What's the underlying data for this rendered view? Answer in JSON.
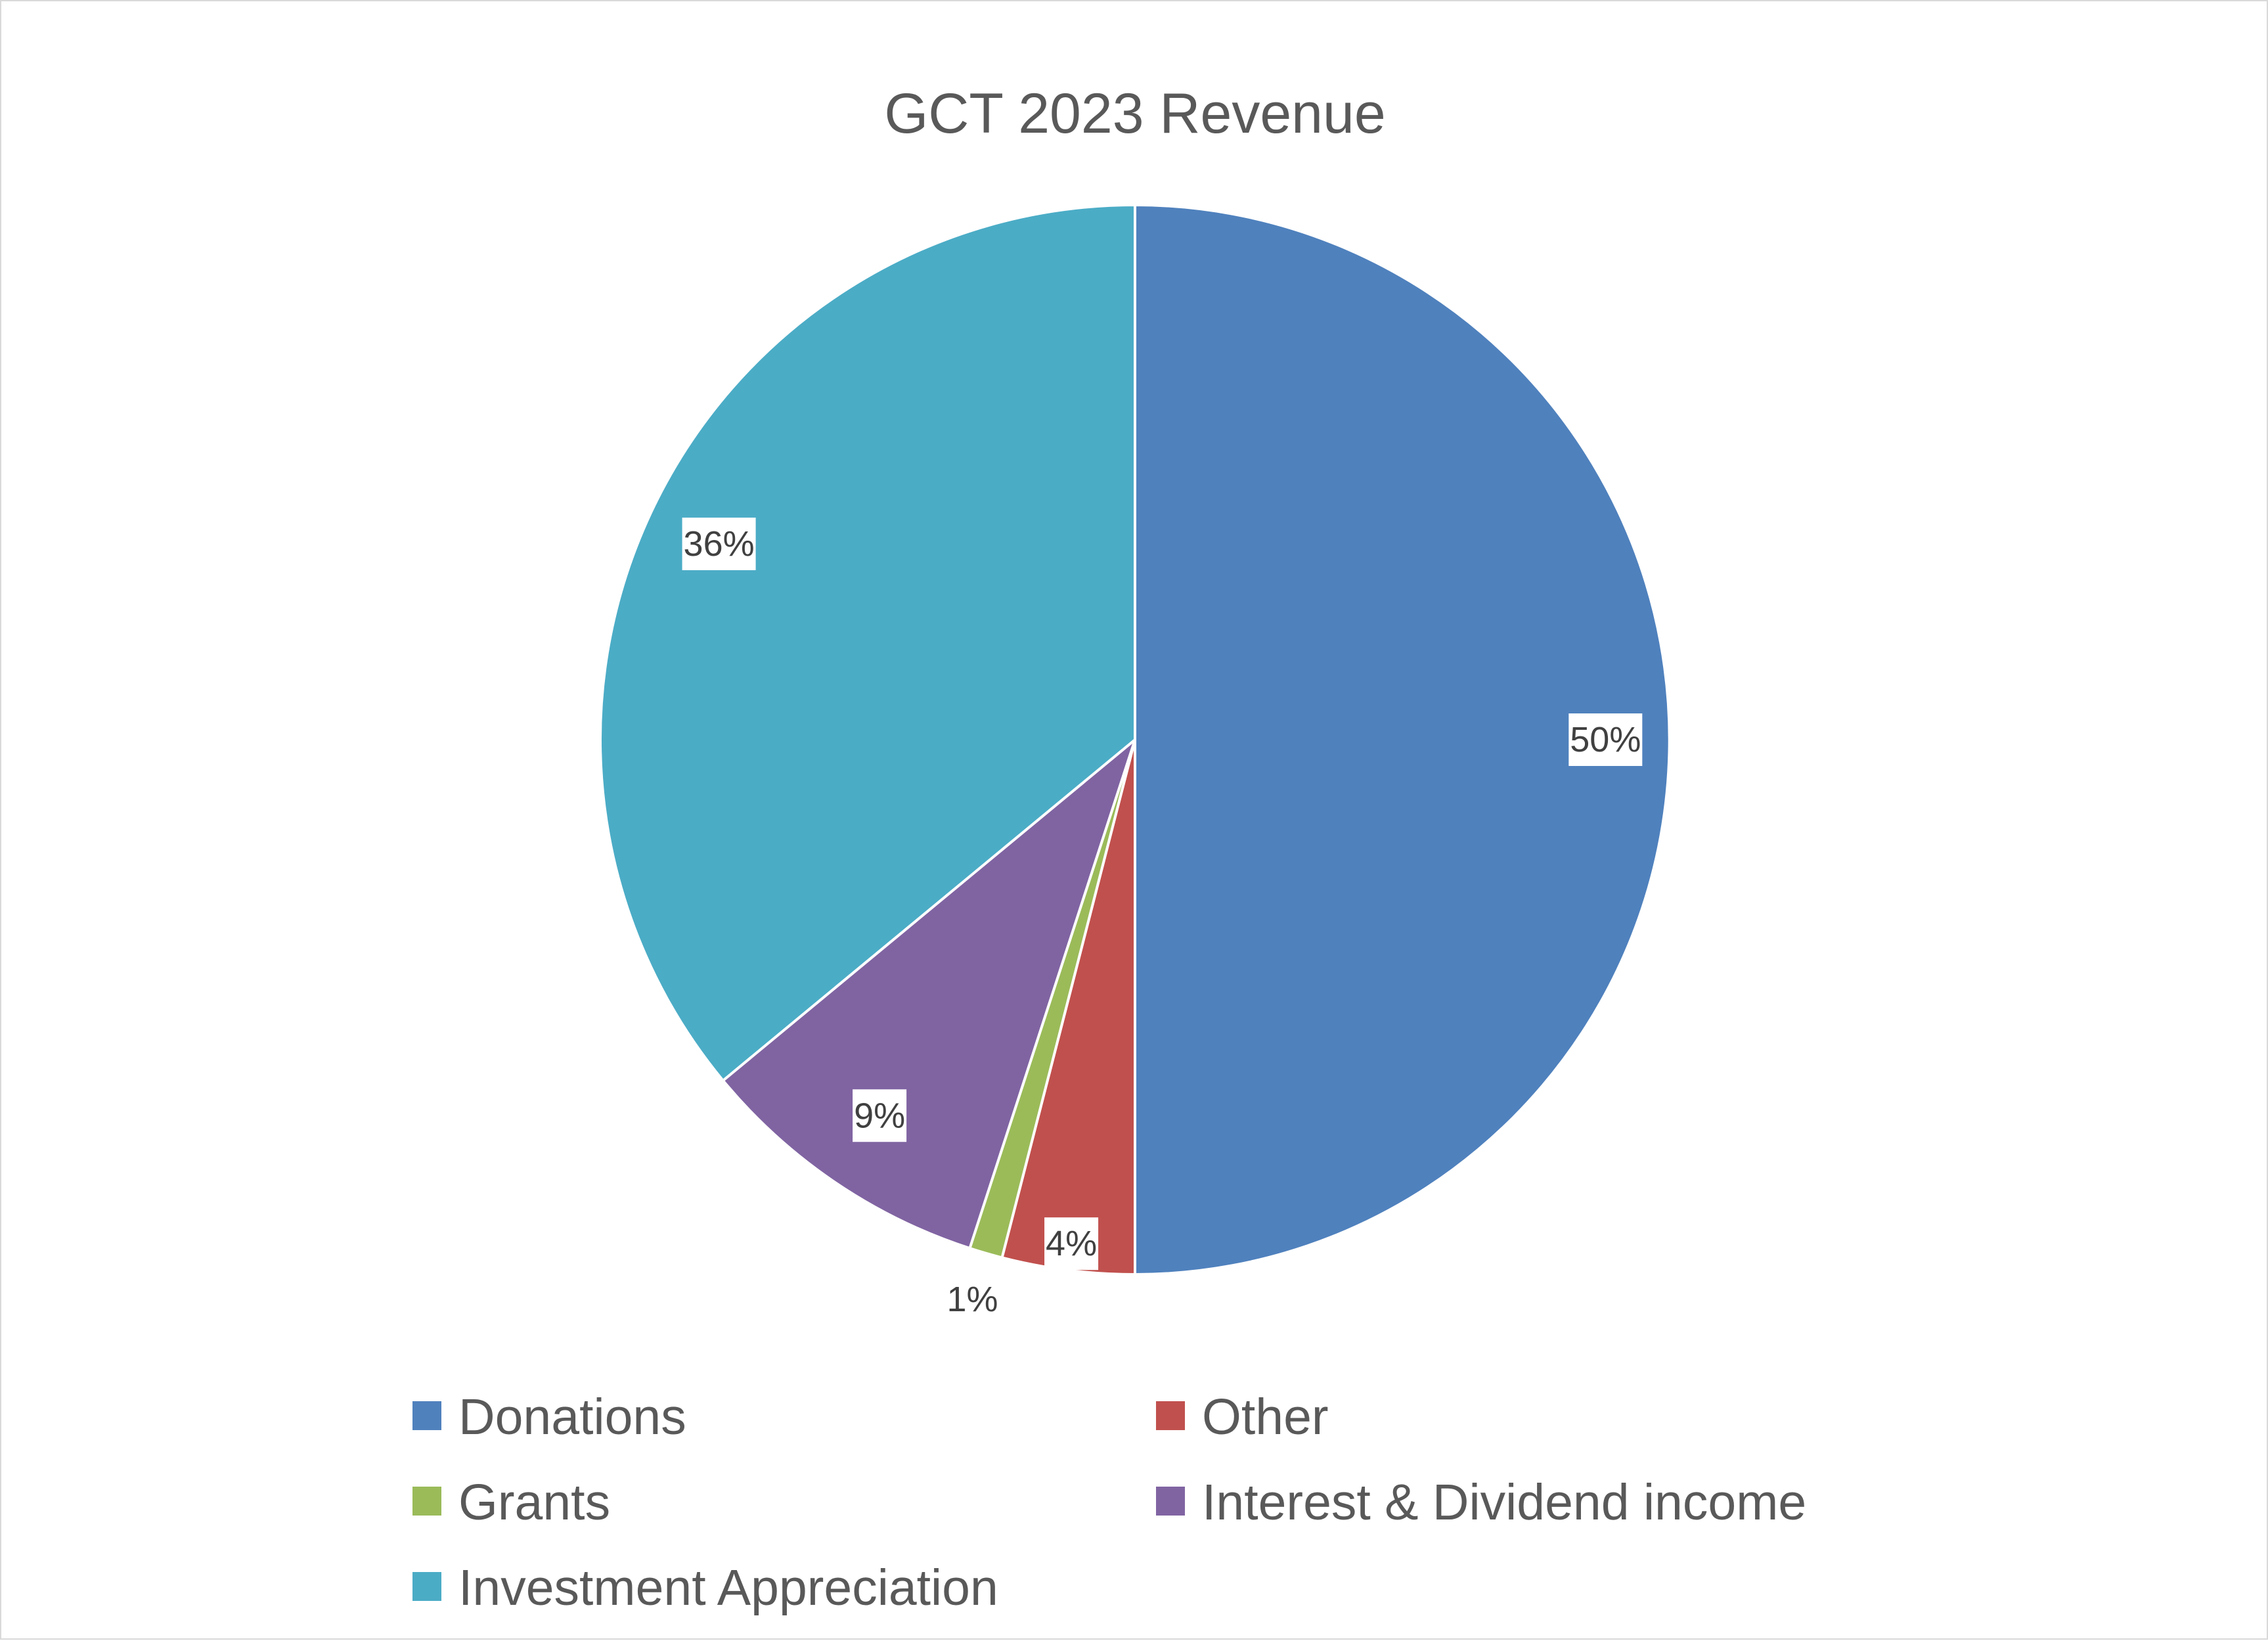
{
  "chart_data": {
    "type": "pie",
    "title": "GCT 2023 Revenue",
    "slices": [
      {
        "name": "Donations",
        "value": 50,
        "label": "50%",
        "color": "#4F81BD"
      },
      {
        "name": "Other",
        "value": 4,
        "label": "4%",
        "color": "#C0504D"
      },
      {
        "name": "Grants",
        "value": 1,
        "label": "1%",
        "color": "#9BBB59"
      },
      {
        "name": "Interest & Dividend income",
        "value": 9,
        "label": "9%",
        "color": "#8064A2"
      },
      {
        "name": "Investment Appreciation",
        "value": 36,
        "label": "36%",
        "color": "#4BACC6"
      }
    ],
    "legend_position": "bottom"
  }
}
